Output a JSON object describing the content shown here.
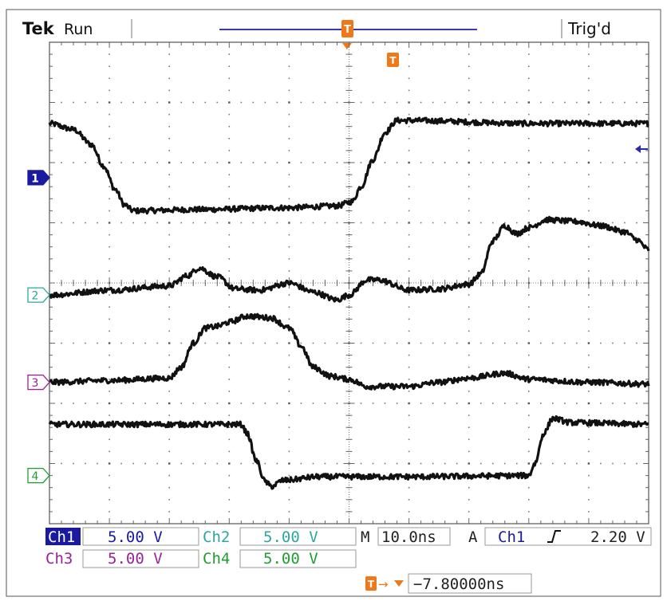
{
  "header": {
    "brand": "Tek",
    "state": "Run",
    "trigger_status": "Trig'd"
  },
  "trigger_marker_glyph": "T",
  "chart_data": {
    "type": "line",
    "x_unit": "ns",
    "x_range_ns": [
      -50,
      50
    ],
    "y_range_div": [
      -4,
      4
    ],
    "grid": true,
    "series": [
      {
        "name": "1",
        "color": "#1a1aa0",
        "ref_div": 1.75,
        "points": [
          [
            -50,
            2.65
          ],
          [
            -46,
            2.55
          ],
          [
            -43,
            2.3
          ],
          [
            -41,
            1.95
          ],
          [
            -39,
            1.55
          ],
          [
            -37.5,
            1.3
          ],
          [
            -36,
            1.2
          ],
          [
            -25,
            1.22
          ],
          [
            -10,
            1.25
          ],
          [
            -2,
            1.28
          ],
          [
            0.5,
            1.35
          ],
          [
            2,
            1.6
          ],
          [
            4,
            2.05
          ],
          [
            6,
            2.5
          ],
          [
            8,
            2.7
          ],
          [
            10,
            2.7
          ],
          [
            30,
            2.65
          ],
          [
            50,
            2.65
          ]
        ]
      },
      {
        "name": "2",
        "color": "#2aa7a0",
        "ref_div": -0.2,
        "points": [
          [
            -50,
            -0.2
          ],
          [
            -40,
            -0.12
          ],
          [
            -30,
            -0.05
          ],
          [
            -27,
            0.12
          ],
          [
            -25,
            0.25
          ],
          [
            -22,
            0.1
          ],
          [
            -19,
            -0.1
          ],
          [
            -15,
            -0.12
          ],
          [
            -10,
            0.0
          ],
          [
            -6,
            -0.15
          ],
          [
            -2,
            -0.28
          ],
          [
            0,
            -0.2
          ],
          [
            3,
            0.05
          ],
          [
            5,
            0.05
          ],
          [
            10,
            -0.12
          ],
          [
            15,
            -0.1
          ],
          [
            20,
            -0.02
          ],
          [
            22,
            0.15
          ],
          [
            24,
            0.7
          ],
          [
            26,
            0.95
          ],
          [
            28,
            0.82
          ],
          [
            30,
            0.92
          ],
          [
            33,
            1.05
          ],
          [
            38,
            1.02
          ],
          [
            42,
            0.95
          ],
          [
            46,
            0.85
          ],
          [
            48,
            0.72
          ],
          [
            50,
            0.55
          ]
        ]
      },
      {
        "name": "3",
        "color": "#992299",
        "ref_div": -1.65,
        "points": [
          [
            -50,
            -1.65
          ],
          [
            -40,
            -1.62
          ],
          [
            -30,
            -1.58
          ],
          [
            -28,
            -1.4
          ],
          [
            -26,
            -1.0
          ],
          [
            -24,
            -0.75
          ],
          [
            -22,
            -0.72
          ],
          [
            -20,
            -0.65
          ],
          [
            -17,
            -0.55
          ],
          [
            -13,
            -0.58
          ],
          [
            -10,
            -0.75
          ],
          [
            -8,
            -1.05
          ],
          [
            -6,
            -1.4
          ],
          [
            -3,
            -1.55
          ],
          [
            0,
            -1.6
          ],
          [
            3,
            -1.72
          ],
          [
            10,
            -1.72
          ],
          [
            15,
            -1.65
          ],
          [
            20,
            -1.58
          ],
          [
            26,
            -1.5
          ],
          [
            30,
            -1.6
          ],
          [
            40,
            -1.65
          ],
          [
            50,
            -1.68
          ]
        ]
      },
      {
        "name": "4",
        "color": "#1f9e2f",
        "ref_div": -3.2,
        "points": [
          [
            -50,
            -2.35
          ],
          [
            -30,
            -2.35
          ],
          [
            -18,
            -2.35
          ],
          [
            -17,
            -2.5
          ],
          [
            -15.5,
            -2.95
          ],
          [
            -14,
            -3.3
          ],
          [
            -13,
            -3.38
          ],
          [
            -11,
            -3.28
          ],
          [
            -5,
            -3.22
          ],
          [
            10,
            -3.22
          ],
          [
            30,
            -3.2
          ],
          [
            31,
            -3.0
          ],
          [
            32.5,
            -2.5
          ],
          [
            34,
            -2.25
          ],
          [
            37,
            -2.32
          ],
          [
            50,
            -2.35
          ]
        ]
      }
    ]
  },
  "readouts": {
    "ch1": {
      "label": "Ch1",
      "value": "5.00 V"
    },
    "ch2": {
      "label": "Ch2",
      "value": "5.00 V"
    },
    "ch3": {
      "label": "Ch3",
      "value": "5.00 V"
    },
    "ch4": {
      "label": "Ch4",
      "value": "5.00 V"
    },
    "timebase": {
      "label": "M",
      "value": "10.0ns"
    },
    "trigger": {
      "label": "A",
      "source": "Ch1",
      "slope_icon": "rising-edge-icon",
      "level": "2.20 V"
    },
    "position": {
      "arrow": "→",
      "value": "−7.80000ns"
    }
  },
  "colors": {
    "ch1": "#1a1aa0",
    "ch2": "#2aa7a0",
    "ch3": "#992299",
    "ch4": "#1f9e2f",
    "trigger": "#f07818",
    "record_bar": "#3a3ab0"
  }
}
